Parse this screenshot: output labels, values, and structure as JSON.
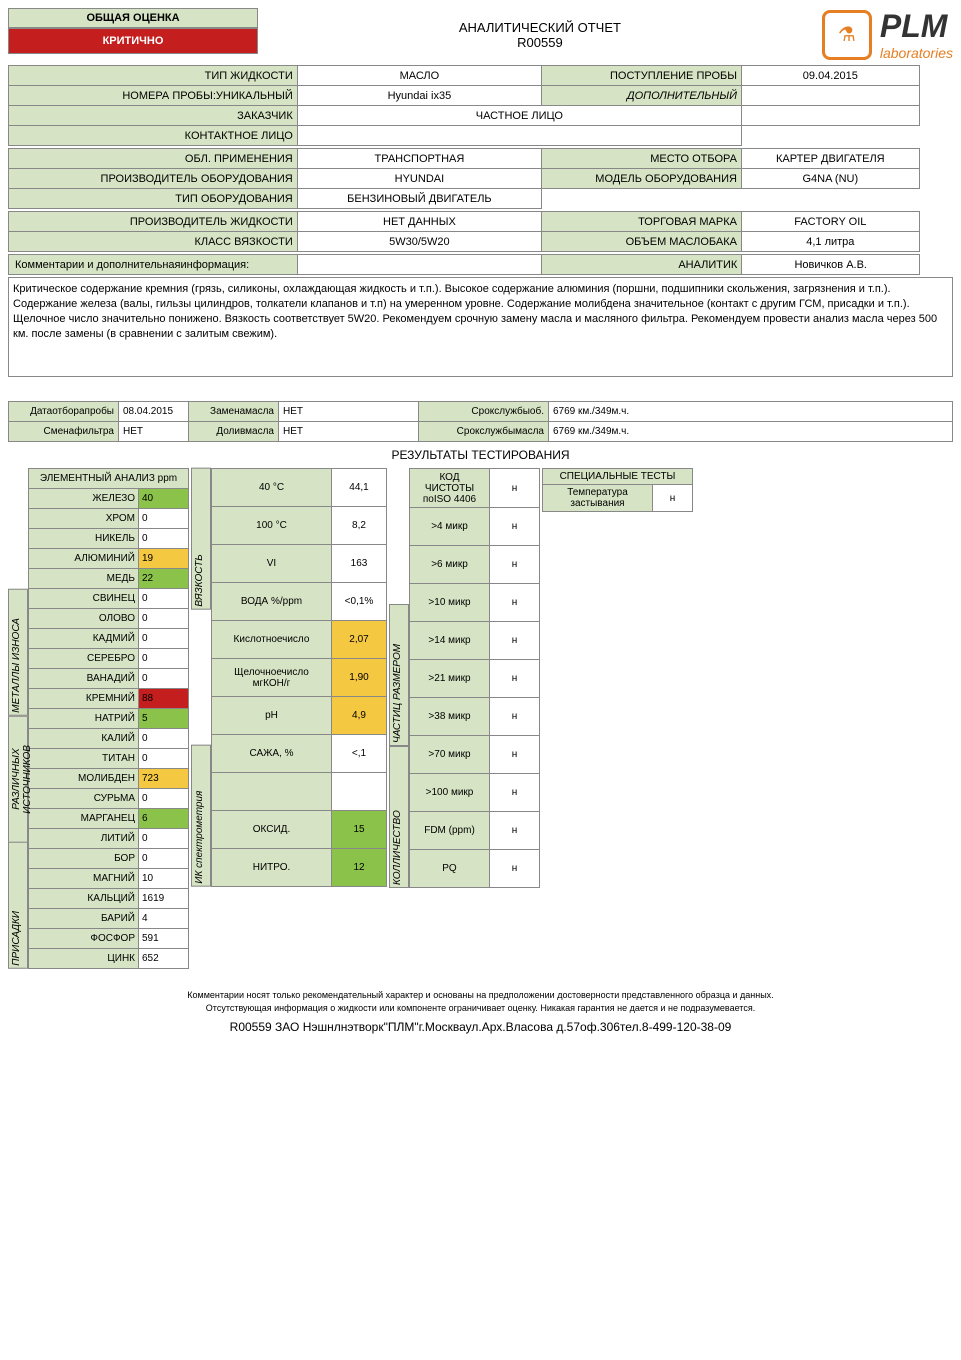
{
  "assessment": {
    "title": "ОБЩАЯ ОЦЕНКА",
    "value": "КРИТИЧНО"
  },
  "report": {
    "title": "АНАЛИТИЧЕСКИЙ ОТЧЕТ",
    "number": "R00559"
  },
  "logo": {
    "name": "PLM",
    "sub": "laboratories"
  },
  "info1": {
    "fluid_type_lbl": "ТИП ЖИДКОСТИ",
    "fluid_type": "МАСЛО",
    "receipt_lbl": "ПОСТУПЛЕНИЕ ПРОБЫ",
    "receipt": "09.04.2015",
    "sample_lbl": "НОМЕРА ПРОБЫ:УНИКАЛЬНЫЙ",
    "sample": "Hyundai ix35",
    "add_lbl": "ДОПОЛНИТЕЛЬНЫЙ",
    "add": "",
    "customer_lbl": "ЗАКАЗЧИК",
    "customer": "ЧАСТНОЕ ЛИЦО",
    "contact_lbl": "КОНТАКТНОЕ ЛИЦО",
    "contact": ""
  },
  "info2": {
    "area_lbl": "ОБЛ. ПРИМЕНЕНИЯ",
    "area": "ТРАНСПОРТНАЯ",
    "loc_lbl": "МЕСТО ОТБОРА",
    "loc": "КАРТЕР ДВИГАТЕЛЯ",
    "mfr_lbl": "ПРОИЗВОДИТЕЛЬ ОБОРУДОВАНИЯ",
    "mfr": "HYUNDAI",
    "model_lbl": "МОДЕЛЬ ОБОРУДОВАНИЯ",
    "model": "G4NA (NU)",
    "eq_lbl": "ТИП ОБОРУДОВАНИЯ",
    "eq": "БЕНЗИНОВЫЙ ДВИГАТЕЛЬ"
  },
  "info3": {
    "fmfr_lbl": "ПРОИЗВОДИТЕЛЬ ЖИДКОСТИ",
    "fmfr": "НЕТ ДАННЫХ",
    "brand_lbl": "ТОРГОВАЯ МАРКА",
    "brand": "FACTORY OIL",
    "visc_lbl": "КЛАСС ВЯЗКОСТИ",
    "visc": "5W30/5W20",
    "vol_lbl": "ОБЪЕМ МАСЛОБАКА",
    "vol": "4,1 литра"
  },
  "info4": {
    "comm_lbl": "Комментарии и дополнительнаяинформация:",
    "comm": "",
    "analyst_lbl": "АНАЛИТИК",
    "analyst": "Новичков А.В."
  },
  "comment": "Критическое содержание кремния (грязь, силиконы, охлаждающая жидкость и т.п.). Высокое содержание алюминия (поршни, подшипники скольжения, загрязнения и т.п.). Содержание железа (валы, гильзы цилиндров, толкатели клапанов и т.п) на умеренном уровне. Содержание молибдена значительное (контакт с другим ГСМ, присадки и т.п.). Щелочное число значительно понижено. Вязкость соответствует 5W20. Рекомендуем срочную замену масла и масляного фильтра. Рекомендуем провести анализ масла через 500 км. после замены (в сравнении с залитым свежим).",
  "svc": {
    "date_lbl": "Датаотборапробы",
    "date": "08.04.2015",
    "oilch_lbl": "Заменамасла",
    "oilch": "НЕТ",
    "eqlife_lbl": "Срокслужбыоб.",
    "eqlife": "6769 км./349м.ч.",
    "filt_lbl": "Сменафильтра",
    "filt": "НЕТ",
    "topup_lbl": "Доливмасла",
    "topup": "НЕТ",
    "oillife_lbl": "Срокслужбымасла",
    "oillife": "6769 км./349м.ч."
  },
  "results_title": "РЕЗУЛЬТАТЫ ТЕСТИРОВАНИЯ",
  "elem_header": "ЭЛЕМЕНТНЫЙ АНАЛИЗ ppm",
  "cats": {
    "wear": "МЕТАЛЛЫ ИЗНОСА",
    "src": "РАЗЛИЧНЫХ ИСТОЧНИКОВ",
    "add": "ПРИСАДКИ"
  },
  "elements": [
    {
      "n": "ЖЕЛЕЗО",
      "v": "40",
      "c": "g"
    },
    {
      "n": "ХРОМ",
      "v": "0",
      "c": ""
    },
    {
      "n": "НИКЕЛЬ",
      "v": "0",
      "c": ""
    },
    {
      "n": "АЛЮМИНИЙ",
      "v": "19",
      "c": "y"
    },
    {
      "n": "МЕДЬ",
      "v": "22",
      "c": "g"
    },
    {
      "n": "СВИНЕЦ",
      "v": "0",
      "c": ""
    },
    {
      "n": "ОЛОВО",
      "v": "0",
      "c": ""
    },
    {
      "n": "КАДМИЙ",
      "v": "0",
      "c": ""
    },
    {
      "n": "СЕРЕБРО",
      "v": "0",
      "c": ""
    },
    {
      "n": "ВАНАДИЙ",
      "v": "0",
      "c": ""
    },
    {
      "n": "КРЕМНИЙ",
      "v": "88",
      "c": "r"
    },
    {
      "n": "НАТРИЙ",
      "v": "5",
      "c": "g"
    },
    {
      "n": "КАЛИЙ",
      "v": "0",
      "c": ""
    },
    {
      "n": "ТИТАН",
      "v": "0",
      "c": ""
    },
    {
      "n": "МОЛИБДЕН",
      "v": "723",
      "c": "y"
    },
    {
      "n": "СУРЬМА",
      "v": "0",
      "c": ""
    },
    {
      "n": "МАРГАНЕЦ",
      "v": "6",
      "c": "g"
    },
    {
      "n": "ЛИТИЙ",
      "v": "0",
      "c": ""
    },
    {
      "n": "БОР",
      "v": "0",
      "c": ""
    },
    {
      "n": "МАГНИЙ",
      "v": "10",
      "c": ""
    },
    {
      "n": "КАЛЬЦИЙ",
      "v": "1619",
      "c": ""
    },
    {
      "n": "БАРИЙ",
      "v": "4",
      "c": ""
    },
    {
      "n": "ФОСФОР",
      "v": "591",
      "c": ""
    },
    {
      "n": "ЦИНК",
      "v": "652",
      "c": ""
    }
  ],
  "phys_cat": {
    "visc": "ВЯЗКОСТЬ",
    "ir": "ИК спектрометрия"
  },
  "phys": [
    {
      "l": "40 °C",
      "v": "44,1",
      "c": ""
    },
    {
      "l": "100 °C",
      "v": "8,2",
      "c": ""
    },
    {
      "l": "VI",
      "v": "163",
      "c": ""
    },
    {
      "l": "ВОДА %/ppm",
      "v": "<0,1%",
      "c": ""
    },
    {
      "l": "Кислотноечисло",
      "v": "2,07",
      "c": "y"
    },
    {
      "l": "Щелочноечисло мгКОН/г",
      "v": "1,90",
      "c": "y"
    },
    {
      "l": "pH",
      "v": "4,9",
      "c": "y"
    },
    {
      "l": "САЖА, %",
      "v": "<,1",
      "c": ""
    },
    {
      "l": "",
      "v": "",
      "c": ""
    },
    {
      "l": "ОКСИД.",
      "v": "15",
      "c": "g"
    },
    {
      "l": "НИТРО.",
      "v": "12",
      "c": "g"
    }
  ],
  "iso_title": "КОД ЧИСТОТЫ поISO 4406",
  "iso_n": "н",
  "iso_cat": {
    "size": "ЧАСТИЦ РАЗМЕРОМ",
    "qty": "КОЛЛИЧЕСТВО"
  },
  "iso": [
    {
      "l": ">4 микр",
      "v": "н"
    },
    {
      "l": ">6 микр",
      "v": "н"
    },
    {
      "l": ">10 микр",
      "v": "н"
    },
    {
      "l": ">14 микр",
      "v": "н"
    },
    {
      "l": ">21 микр",
      "v": "н"
    },
    {
      "l": ">38 микр",
      "v": "н"
    },
    {
      "l": ">70 микр",
      "v": "н"
    },
    {
      "l": ">100 микр",
      "v": "н"
    },
    {
      "l": "FDM (ppm)",
      "v": "н"
    },
    {
      "l": "PQ",
      "v": "н"
    }
  ],
  "special": {
    "title": "СПЕЦИАЛЬНЫЕ ТЕСТЫ",
    "pour_lbl": "Температура застывания",
    "pour": "н"
  },
  "footnote1": "Комментарии носят только рекомендательный характер и основаны на предположении достоверности представленного образца и данных.",
  "footnote2": "Отсутствующая информация о жидкости или компоненте ограничивает оценку. Никакая гарантия не дается и не подразумевается.",
  "address": "R00559 ЗАО Нэшнлнэтворк\"ПЛМ\"г.Москваул.Арх.Власова д.57оф.306тел.8-499-120-38-09"
}
